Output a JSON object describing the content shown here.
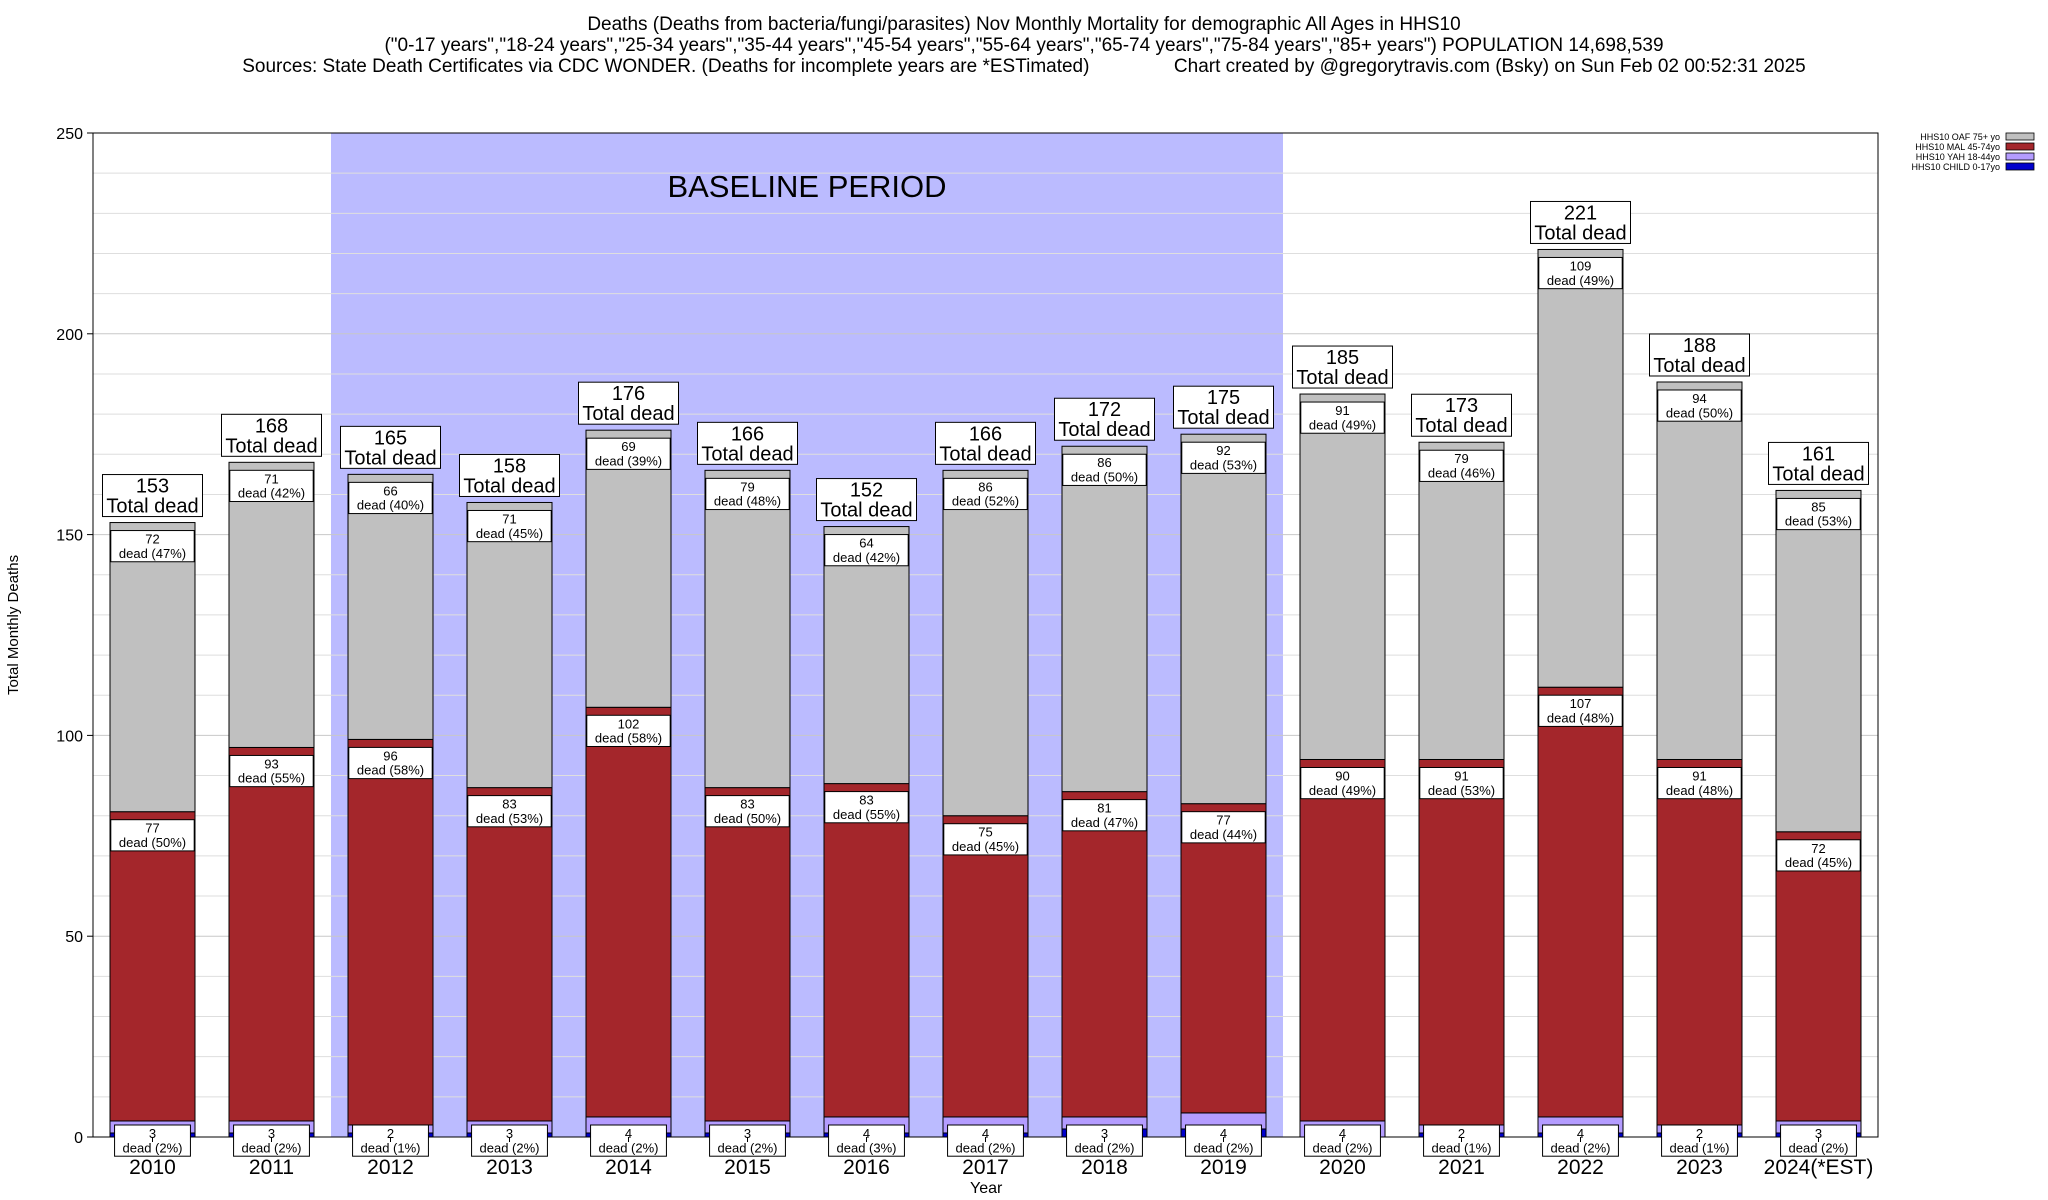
{
  "title_lines": [
    "Deaths (Deaths from bacteria/fungi/parasites) Nov Monthly Mortality for demographic All Ages in HHS10",
    "(\"0-17 years\",\"18-24 years\",\"25-34 years\",\"35-44 years\",\"45-54 years\",\"55-64 years\",\"65-74 years\",\"75-84 years\",\"85+ years\") POPULATION 14,698,539",
    "Sources: State Death Certificates via CDC WONDER. (Deaths for incomplete years are *ESTimated)                Chart created by @gregorytravis.com (Bsky) on Sun Feb 02 00:52:31 2025"
  ],
  "chart_data": {
    "type": "bar",
    "stacked": true,
    "xlabel": "Year",
    "ylabel": "Total Monthly Deaths",
    "ylim": [
      0,
      250
    ],
    "yticks": [
      0,
      50,
      100,
      150,
      200,
      250
    ],
    "grid": true,
    "legend_position": "top-right",
    "categories": [
      "2010",
      "2011",
      "2012",
      "2013",
      "2014",
      "2015",
      "2016",
      "2017",
      "2018",
      "2019",
      "2020",
      "2021",
      "2022",
      "2023",
      "2024(*EST)"
    ],
    "series": [
      {
        "name": "HHS10 CHILD 0-17yo",
        "color": "#0000cc",
        "values": [
          1,
          1,
          1,
          1,
          1,
          1,
          1,
          1,
          2,
          2,
          0,
          1,
          1,
          1,
          1
        ]
      },
      {
        "name": "HHS10 YAH 18-44yo",
        "color": "#b49cff",
        "values": [
          3,
          3,
          2,
          3,
          4,
          3,
          4,
          4,
          3,
          4,
          4,
          2,
          4,
          2,
          3
        ]
      },
      {
        "name": "HHS10 MAL 45-74yo",
        "color": "#a4262b",
        "values": [
          77,
          93,
          96,
          83,
          102,
          83,
          83,
          75,
          81,
          77,
          90,
          91,
          107,
          91,
          72
        ]
      },
      {
        "name": "HHS10 OAF 75+ yo",
        "color": "#c0c0c0",
        "values": [
          72,
          71,
          66,
          71,
          69,
          79,
          64,
          86,
          86,
          92,
          91,
          79,
          109,
          94,
          85
        ]
      }
    ],
    "totals": [
      153,
      168,
      165,
      158,
      176,
      166,
      152,
      166,
      172,
      175,
      185,
      173,
      221,
      188,
      161
    ],
    "total_label": "Total dead",
    "segment_labels": {
      "oaf": [
        "72",
        "71",
        "66",
        "71",
        "69",
        "79",
        "64",
        "86",
        "86",
        "92",
        "91",
        "79",
        "109",
        "94",
        "85"
      ],
      "oaf_pct": [
        "dead (47%)",
        "dead (42%)",
        "dead (40%)",
        "dead (45%)",
        "dead (39%)",
        "dead (48%)",
        "dead (42%)",
        "dead (52%)",
        "dead (50%)",
        "dead (53%)",
        "dead (49%)",
        "dead (46%)",
        "dead (49%)",
        "dead (50%)",
        "dead (53%)"
      ],
      "mal": [
        "77",
        "93",
        "96",
        "83",
        "102",
        "83",
        "83",
        "75",
        "81",
        "77",
        "90",
        "91",
        "107",
        "91",
        "72"
      ],
      "mal_pct": [
        "dead (50%)",
        "dead (55%)",
        "dead (58%)",
        "dead (53%)",
        "dead (58%)",
        "dead (50%)",
        "dead (55%)",
        "dead (45%)",
        "dead (47%)",
        "dead (44%)",
        "dead (49%)",
        "dead (53%)",
        "dead (48%)",
        "dead (48%)",
        "dead (45%)"
      ],
      "yah": [
        "3",
        "3",
        "2",
        "3",
        "4",
        "3",
        "4",
        "4",
        "3",
        "4",
        "4",
        "2",
        "4",
        "2",
        "3"
      ],
      "yah_pct": [
        "dead (2%)",
        "dead (2%)",
        "dead (1%)",
        "dead (2%)",
        "dead (2%)",
        "dead (2%)",
        "dead (3%)",
        "dead (2%)",
        "dead (2%)",
        "dead (2%)",
        "dead (2%)",
        "dead (1%)",
        "dead (2%)",
        "dead (1%)",
        "dead (2%)"
      ]
    },
    "annotations": [
      {
        "text": "BASELINE PERIOD",
        "x_from": "2012",
        "x_to": "2019",
        "color": "#bbbbff"
      }
    ]
  }
}
